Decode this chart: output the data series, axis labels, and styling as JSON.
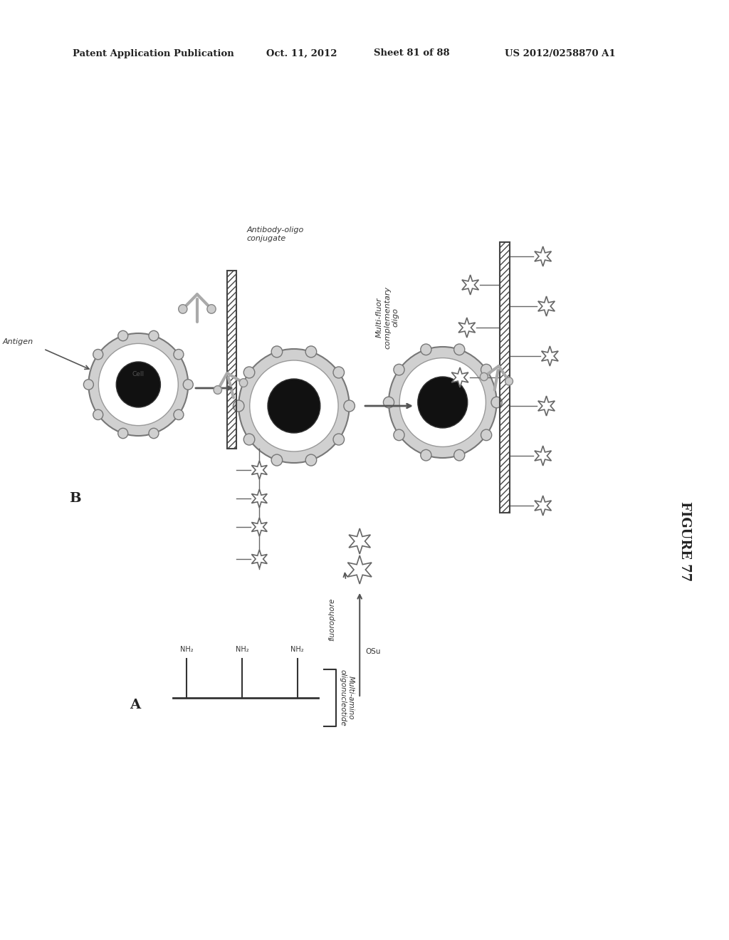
{
  "background_color": "#ffffff",
  "header_text": "Patent Application Publication",
  "header_date": "Oct. 11, 2012",
  "header_sheet": "Sheet 81 of 88",
  "header_patent": "US 2012/0258870 A1",
  "figure_label": "FIGURE 77",
  "label_B": "B",
  "label_A": "A",
  "label_antigen": "Antigen",
  "label_antibody_oligo": "Antibody-oligo\nconjugate",
  "label_multifluor": "Multi-fluor\ncomplementary\noligo",
  "label_fluorophore": "fluorophore",
  "label_osu": "OSu",
  "label_multi_amino": "Multi-amino\noligonucleotide",
  "label_cell": "Cell"
}
